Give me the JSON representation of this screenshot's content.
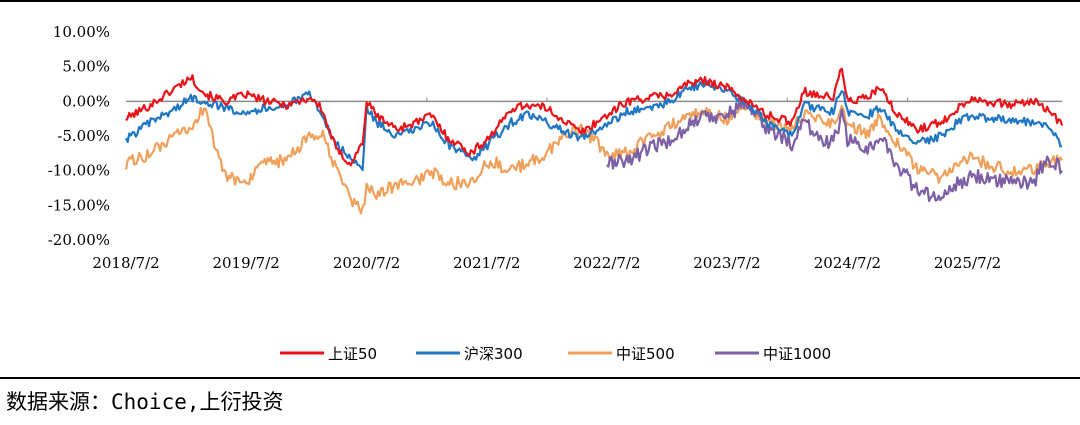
{
  "chart_data": {
    "type": "line",
    "title": "",
    "xlabel": "",
    "ylabel": "",
    "ylim": [
      -0.2,
      0.1
    ],
    "y_ticks": [
      0.1,
      0.05,
      0.0,
      -0.05,
      -0.1,
      -0.15,
      -0.2
    ],
    "y_tick_labels": [
      "10.00%",
      "5.00%",
      "0.00%",
      "-5.00%",
      "-10.00%",
      "-15.00%",
      "-20.00%"
    ],
    "x_range": [
      "2018-07-02",
      "2026-04-15"
    ],
    "x_ticks": [
      "2018-07-02",
      "2019-07-02",
      "2020-07-02",
      "2021-07-02",
      "2022-07-02",
      "2023-07-02",
      "2024-07-02",
      "2025-07-02"
    ],
    "x_tick_labels": [
      "2018/7/2",
      "2019/7/2",
      "2020/7/2",
      "2021/7/2",
      "2022/7/2",
      "2023/7/2",
      "2024/7/2",
      "2025/7/2"
    ],
    "legend_position": "bottom",
    "grid": false,
    "series": [
      {
        "name": "上证50",
        "color": "#e8141a",
        "points": [
          [
            "2018-07-02",
            -0.025
          ],
          [
            "2018-09-15",
            -0.005
          ],
          [
            "2018-12-01",
            0.02
          ],
          [
            "2019-01-15",
            0.035
          ],
          [
            "2019-03-01",
            0.01
          ],
          [
            "2019-05-01",
            0.0
          ],
          [
            "2019-07-02",
            0.01
          ],
          [
            "2019-09-01",
            0.0
          ],
          [
            "2019-11-01",
            -0.005
          ],
          [
            "2020-01-15",
            0.005
          ],
          [
            "2020-02-15",
            -0.01
          ],
          [
            "2020-04-01",
            -0.07
          ],
          [
            "2020-05-15",
            -0.09
          ],
          [
            "2020-06-20",
            -0.06
          ],
          [
            "2020-07-02",
            0.0
          ],
          [
            "2020-08-01",
            -0.02
          ],
          [
            "2020-10-01",
            -0.04
          ],
          [
            "2020-12-01",
            -0.03
          ],
          [
            "2021-01-15",
            -0.02
          ],
          [
            "2021-03-01",
            -0.05
          ],
          [
            "2021-05-15",
            -0.075
          ],
          [
            "2021-06-20",
            -0.06
          ],
          [
            "2021-08-01",
            -0.04
          ],
          [
            "2021-09-15",
            -0.01
          ],
          [
            "2021-11-01",
            -0.005
          ],
          [
            "2022-01-01",
            -0.01
          ],
          [
            "2022-03-01",
            -0.03
          ],
          [
            "2022-04-15",
            -0.045
          ],
          [
            "2022-06-01",
            -0.03
          ],
          [
            "2022-07-02",
            -0.02
          ],
          [
            "2022-09-01",
            0.0
          ],
          [
            "2022-11-01",
            0.005
          ],
          [
            "2023-01-15",
            0.01
          ],
          [
            "2023-03-01",
            0.025
          ],
          [
            "2023-05-01",
            0.03
          ],
          [
            "2023-07-02",
            0.02
          ],
          [
            "2023-09-01",
            0.0
          ],
          [
            "2023-11-01",
            -0.02
          ],
          [
            "2024-01-15",
            -0.03
          ],
          [
            "2024-02-20",
            0.015
          ],
          [
            "2024-04-01",
            0.01
          ],
          [
            "2024-05-20",
            0.005
          ],
          [
            "2024-06-15",
            0.05
          ],
          [
            "2024-07-02",
            0.0
          ],
          [
            "2024-09-01",
            0.005
          ],
          [
            "2024-10-08",
            0.02
          ],
          [
            "2024-12-01",
            -0.02
          ],
          [
            "2025-02-01",
            -0.04
          ],
          [
            "2025-04-15",
            -0.03
          ],
          [
            "2025-06-01",
            -0.01
          ],
          [
            "2025-07-15",
            0.005
          ],
          [
            "2025-09-01",
            0.0
          ],
          [
            "2025-11-01",
            -0.005
          ],
          [
            "2026-01-15",
            0.0
          ],
          [
            "2026-03-01",
            -0.01
          ],
          [
            "2026-04-15",
            -0.035
          ]
        ]
      },
      {
        "name": "沪深300",
        "color": "#1f77c4",
        "points": [
          [
            "2018-07-02",
            -0.055
          ],
          [
            "2018-09-15",
            -0.03
          ],
          [
            "2018-12-01",
            -0.01
          ],
          [
            "2019-01-15",
            0.005
          ],
          [
            "2019-03-01",
            0.0
          ],
          [
            "2019-05-01",
            -0.01
          ],
          [
            "2019-07-02",
            -0.015
          ],
          [
            "2019-09-01",
            -0.01
          ],
          [
            "2019-11-01",
            -0.005
          ],
          [
            "2020-01-15",
            0.01
          ],
          [
            "2020-02-15",
            -0.02
          ],
          [
            "2020-04-01",
            -0.06
          ],
          [
            "2020-05-15",
            -0.085
          ],
          [
            "2020-06-20",
            -0.095
          ],
          [
            "2020-07-02",
            -0.01
          ],
          [
            "2020-08-01",
            -0.03
          ],
          [
            "2020-10-01",
            -0.05
          ],
          [
            "2020-12-01",
            -0.04
          ],
          [
            "2021-01-15",
            -0.03
          ],
          [
            "2021-03-01",
            -0.06
          ],
          [
            "2021-05-15",
            -0.085
          ],
          [
            "2021-06-20",
            -0.07
          ],
          [
            "2021-08-01",
            -0.05
          ],
          [
            "2021-09-15",
            -0.03
          ],
          [
            "2021-11-01",
            -0.02
          ],
          [
            "2022-01-01",
            -0.03
          ],
          [
            "2022-03-01",
            -0.045
          ],
          [
            "2022-04-15",
            -0.055
          ],
          [
            "2022-06-01",
            -0.04
          ],
          [
            "2022-07-02",
            -0.035
          ],
          [
            "2022-09-01",
            -0.015
          ],
          [
            "2022-11-01",
            -0.01
          ],
          [
            "2023-01-15",
            0.0
          ],
          [
            "2023-03-01",
            0.02
          ],
          [
            "2023-05-01",
            0.025
          ],
          [
            "2023-07-02",
            0.015
          ],
          [
            "2023-09-01",
            -0.005
          ],
          [
            "2023-11-01",
            -0.03
          ],
          [
            "2024-01-15",
            -0.05
          ],
          [
            "2024-02-20",
            -0.005
          ],
          [
            "2024-04-01",
            -0.01
          ],
          [
            "2024-05-20",
            -0.015
          ],
          [
            "2024-06-15",
            0.02
          ],
          [
            "2024-07-02",
            -0.015
          ],
          [
            "2024-09-01",
            -0.02
          ],
          [
            "2024-10-08",
            -0.01
          ],
          [
            "2024-12-01",
            -0.04
          ],
          [
            "2025-02-01",
            -0.06
          ],
          [
            "2025-04-15",
            -0.05
          ],
          [
            "2025-06-01",
            -0.03
          ],
          [
            "2025-07-15",
            -0.02
          ],
          [
            "2025-09-01",
            -0.025
          ],
          [
            "2025-11-01",
            -0.025
          ],
          [
            "2026-01-15",
            -0.03
          ],
          [
            "2026-03-01",
            -0.035
          ],
          [
            "2026-04-15",
            -0.065
          ]
        ]
      },
      {
        "name": "中证500",
        "color": "#f0a05a",
        "points": [
          [
            "2018-07-02",
            -0.09
          ],
          [
            "2018-09-15",
            -0.075
          ],
          [
            "2018-12-01",
            -0.05
          ],
          [
            "2019-01-15",
            -0.04
          ],
          [
            "2019-03-01",
            -0.005
          ],
          [
            "2019-04-01",
            -0.07
          ],
          [
            "2019-05-01",
            -0.11
          ],
          [
            "2019-07-02",
            -0.115
          ],
          [
            "2019-09-01",
            -0.09
          ],
          [
            "2019-11-01",
            -0.085
          ],
          [
            "2020-01-15",
            -0.05
          ],
          [
            "2020-02-15",
            -0.045
          ],
          [
            "2020-04-01",
            -0.1
          ],
          [
            "2020-05-15",
            -0.14
          ],
          [
            "2020-06-20",
            -0.16
          ],
          [
            "2020-07-02",
            -0.12
          ],
          [
            "2020-08-01",
            -0.135
          ],
          [
            "2020-10-01",
            -0.12
          ],
          [
            "2020-12-01",
            -0.115
          ],
          [
            "2021-01-15",
            -0.1
          ],
          [
            "2021-03-01",
            -0.12
          ],
          [
            "2021-05-15",
            -0.115
          ],
          [
            "2021-06-20",
            -0.095
          ],
          [
            "2021-08-01",
            -0.09
          ],
          [
            "2021-09-15",
            -0.1
          ],
          [
            "2021-11-01",
            -0.09
          ],
          [
            "2022-01-01",
            -0.075
          ],
          [
            "2022-03-01",
            -0.045
          ],
          [
            "2022-04-15",
            -0.04
          ],
          [
            "2022-06-01",
            -0.06
          ],
          [
            "2022-07-02",
            -0.08
          ],
          [
            "2022-09-01",
            -0.075
          ],
          [
            "2022-11-01",
            -0.055
          ],
          [
            "2023-01-15",
            -0.035
          ],
          [
            "2023-03-01",
            -0.02
          ],
          [
            "2023-05-01",
            -0.015
          ],
          [
            "2023-07-02",
            -0.025
          ],
          [
            "2023-09-01",
            -0.005
          ],
          [
            "2023-11-01",
            -0.03
          ],
          [
            "2024-01-15",
            -0.04
          ],
          [
            "2024-02-20",
            -0.02
          ],
          [
            "2024-04-01",
            -0.025
          ],
          [
            "2024-05-20",
            -0.03
          ],
          [
            "2024-06-15",
            -0.01
          ],
          [
            "2024-07-02",
            -0.035
          ],
          [
            "2024-09-01",
            -0.045
          ],
          [
            "2024-10-08",
            -0.025
          ],
          [
            "2024-12-01",
            -0.06
          ],
          [
            "2025-02-01",
            -0.1
          ],
          [
            "2025-04-15",
            -0.11
          ],
          [
            "2025-06-01",
            -0.095
          ],
          [
            "2025-07-15",
            -0.08
          ],
          [
            "2025-09-01",
            -0.09
          ],
          [
            "2025-11-01",
            -0.1
          ],
          [
            "2026-01-15",
            -0.1
          ],
          [
            "2026-03-01",
            -0.09
          ],
          [
            "2026-04-15",
            -0.085
          ]
        ]
      },
      {
        "name": "中证1000",
        "color": "#7d5fa5",
        "points": [
          [
            "2022-07-02",
            -0.09
          ],
          [
            "2022-09-01",
            -0.085
          ],
          [
            "2022-11-01",
            -0.07
          ],
          [
            "2023-01-15",
            -0.055
          ],
          [
            "2023-03-01",
            -0.035
          ],
          [
            "2023-05-01",
            -0.02
          ],
          [
            "2023-07-02",
            -0.02
          ],
          [
            "2023-09-01",
            0.0
          ],
          [
            "2023-11-01",
            -0.04
          ],
          [
            "2024-01-15",
            -0.06
          ],
          [
            "2024-02-20",
            -0.03
          ],
          [
            "2024-04-01",
            -0.05
          ],
          [
            "2024-05-20",
            -0.06
          ],
          [
            "2024-06-15",
            -0.02
          ],
          [
            "2024-07-02",
            -0.055
          ],
          [
            "2024-09-01",
            -0.07
          ],
          [
            "2024-10-08",
            -0.05
          ],
          [
            "2024-12-01",
            -0.09
          ],
          [
            "2025-02-01",
            -0.13
          ],
          [
            "2025-04-15",
            -0.14
          ],
          [
            "2025-06-01",
            -0.12
          ],
          [
            "2025-07-15",
            -0.105
          ],
          [
            "2025-09-01",
            -0.11
          ],
          [
            "2025-11-01",
            -0.115
          ],
          [
            "2026-01-15",
            -0.12
          ],
          [
            "2026-03-01",
            -0.08
          ],
          [
            "2026-04-15",
            -0.1
          ]
        ]
      }
    ],
    "source_note": "数据来源：Choice,上衍投资"
  }
}
